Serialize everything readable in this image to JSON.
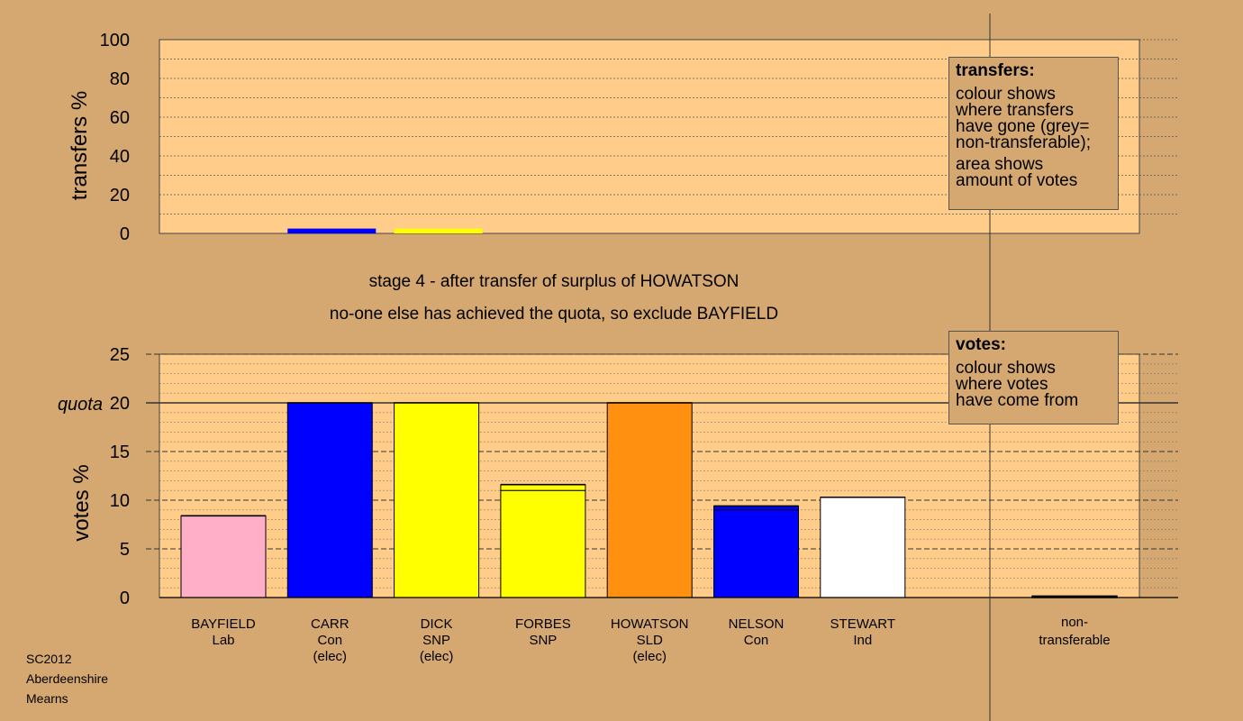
{
  "colors": {
    "background": "#d4a870",
    "plot": "#ffcc8a",
    "Lab": "#ffb0c8",
    "Con": "#0000ff",
    "SNP": "#ffff00",
    "SLD": "#ff9010",
    "Ind": "#ffffff",
    "non_transferable": "#808080"
  },
  "captions": {
    "line1": "stage 4 - after transfer of surplus of HOWATSON",
    "line2": "no-one else has achieved the quota, so exclude BAYFIELD"
  },
  "legends": {
    "transfers": {
      "title": "transfers:",
      "lines": [
        "colour shows",
        "where transfers",
        "have gone (grey=",
        "non-transferable);"
      ],
      "lines2": [
        "area shows",
        "amount of votes"
      ]
    },
    "votes": {
      "title": "votes:",
      "lines": [
        "colour shows",
        "where votes",
        "have come from"
      ]
    }
  },
  "footer": [
    "SC2012",
    "Aberdeenshire",
    "Mearns"
  ],
  "chart_data": [
    {
      "type": "bar",
      "ylabel": "transfers %",
      "ylim": [
        0,
        100
      ],
      "yticks": [
        0,
        20,
        40,
        60,
        80,
        100
      ],
      "categories": [
        "BAYFIELD",
        "CARR",
        "DICK",
        "FORBES",
        "HOWATSON",
        "NELSON",
        "STEWART",
        "non-transferable"
      ],
      "values": [
        0,
        2.5,
        2.5,
        0,
        0,
        0,
        0,
        0
      ],
      "bar_colors": [
        "Lab",
        "Con",
        "SNP",
        "SNP",
        "SLD",
        "Con",
        "Ind",
        "non_transferable"
      ]
    },
    {
      "type": "bar",
      "ylabel": "votes %",
      "ylim": [
        0,
        25
      ],
      "yticks": [
        0,
        5,
        10,
        15,
        20,
        25
      ],
      "quota": {
        "label": "quota",
        "value": 20
      },
      "candidates": [
        {
          "name": "BAYFIELD",
          "party": "Lab",
          "status": "",
          "color": "Lab",
          "segments": [
            {
              "value": 8.4,
              "color": "Lab"
            }
          ]
        },
        {
          "name": "CARR",
          "party": "Con",
          "status": "(elec)",
          "color": "Con",
          "segments": [
            {
              "value": 20,
              "color": "Con"
            }
          ]
        },
        {
          "name": "DICK",
          "party": "SNP",
          "status": "(elec)",
          "color": "SNP",
          "segments": [
            {
              "value": 20,
              "color": "SNP"
            }
          ]
        },
        {
          "name": "FORBES",
          "party": "SNP",
          "status": "",
          "color": "SNP",
          "segments": [
            {
              "value": 11.0,
              "color": "SNP"
            },
            {
              "value": 0.6,
              "color": "SNP"
            }
          ]
        },
        {
          "name": "HOWATSON",
          "party": "SLD",
          "status": "(elec)",
          "color": "SLD",
          "segments": [
            {
              "value": 20,
              "color": "SLD"
            }
          ]
        },
        {
          "name": "NELSON",
          "party": "Con",
          "status": "",
          "color": "Con",
          "segments": [
            {
              "value": 9.0,
              "color": "Con"
            },
            {
              "value": 0.4,
              "color": "Con"
            }
          ]
        },
        {
          "name": "STEWART",
          "party": "Ind",
          "status": "",
          "color": "Ind",
          "segments": [
            {
              "value": 10.3,
              "color": "Ind"
            }
          ]
        }
      ],
      "non_transferable": {
        "label1": "non-",
        "label2": "transferable",
        "value": 0.15,
        "color": "non_transferable"
      }
    }
  ]
}
